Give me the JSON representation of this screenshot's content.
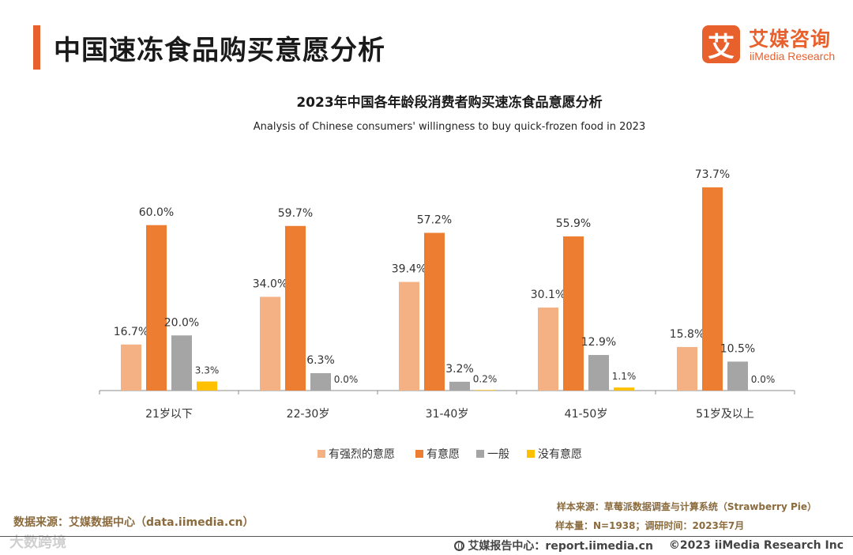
{
  "header": {
    "title": "中国速冻食品购买意愿分析",
    "brand_logo_char": "艾",
    "brand_name_cn": "艾媒咨询",
    "brand_name_en": "iiMedia Research"
  },
  "chart_data": {
    "type": "bar",
    "title": "2023年中国各年龄段消费者购买速冻食品意愿分析",
    "subtitle": "Analysis of Chinese consumers' willingness to buy quick-frozen food in 2023",
    "categories": [
      "21岁以下",
      "22-30岁",
      "31-40岁",
      "41-50岁",
      "51岁及以上"
    ],
    "series": [
      {
        "name": "有强烈的意愿",
        "color": "#f4b183",
        "values": [
          16.7,
          34.0,
          39.4,
          30.1,
          15.8
        ]
      },
      {
        "name": "有意愿",
        "color": "#ed7d31",
        "values": [
          60.0,
          59.7,
          57.2,
          55.9,
          73.7
        ]
      },
      {
        "name": "一般",
        "color": "#a5a5a5",
        "values": [
          20.0,
          6.3,
          3.2,
          12.9,
          10.5
        ]
      },
      {
        "name": "没有意愿",
        "color": "#ffc000",
        "values": [
          3.3,
          0.0,
          0.2,
          1.1,
          0.0
        ]
      }
    ],
    "value_suffix": "%",
    "ylim": [
      0,
      80
    ],
    "grid": false,
    "legend_position": "bottom"
  },
  "footer": {
    "data_source": "数据来源：艾媒数据中心（data.iimedia.cn）",
    "sample_source": "样本来源：草莓派数据调查与计算系统（Strawberry Pie）",
    "sample_size": "样本量：N=1938；调研时间：2023年7月",
    "watermark": "大数跨境",
    "report_center": "艾媒报告中心：report.iimedia.cn",
    "copyright": "©2023  iiMedia Research  Inc"
  }
}
